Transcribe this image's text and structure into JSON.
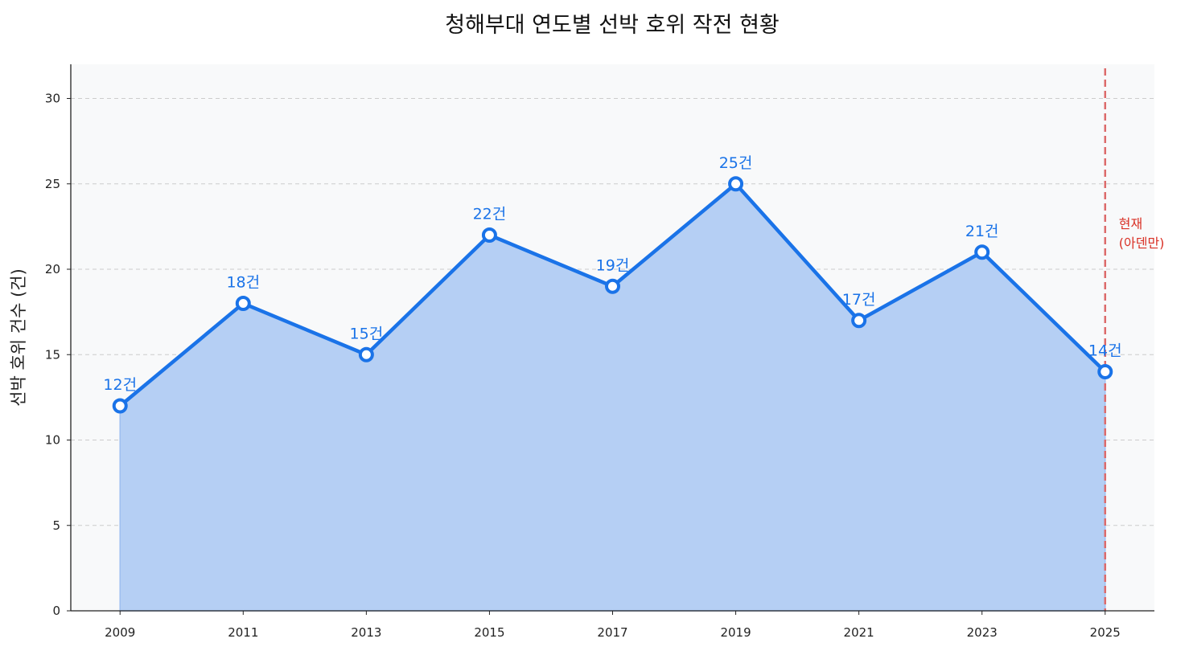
{
  "chart_data": {
    "type": "area",
    "title": "청해부대 연도별 선박 호위 작전 현황",
    "xlabel": "",
    "ylabel": "선박 호위 건수 (건)",
    "x": [
      2009,
      2011,
      2013,
      2015,
      2017,
      2019,
      2021,
      2023,
      2025
    ],
    "series": [
      {
        "values": [
          12,
          18,
          15,
          22,
          19,
          25,
          17,
          21,
          14
        ],
        "labels": [
          "12건",
          "18건",
          "15건",
          "22건",
          "19건",
          "25건",
          "17건",
          "21건",
          "14건"
        ]
      }
    ],
    "xticks": [
      "2009",
      "2011",
      "2013",
      "2015",
      "2017",
      "2019",
      "2021",
      "2023",
      "2025"
    ],
    "yticks": [
      "0",
      "5",
      "10",
      "15",
      "20",
      "25",
      "30"
    ],
    "xlim": [
      2008.2,
      2025.8
    ],
    "ylim": [
      0,
      32
    ],
    "grid": "y-dashed",
    "annotation": {
      "x": 2025,
      "line1": "현재",
      "line2": "(아덴만)"
    },
    "colors": {
      "line": "#1a73e8",
      "fill": "#b5cff4",
      "background": "#f8f9fa",
      "marker_face": "#ffffff",
      "vline": "#dc6b6b",
      "annotation_text": "#d93025",
      "grid": "#cccccc"
    }
  }
}
